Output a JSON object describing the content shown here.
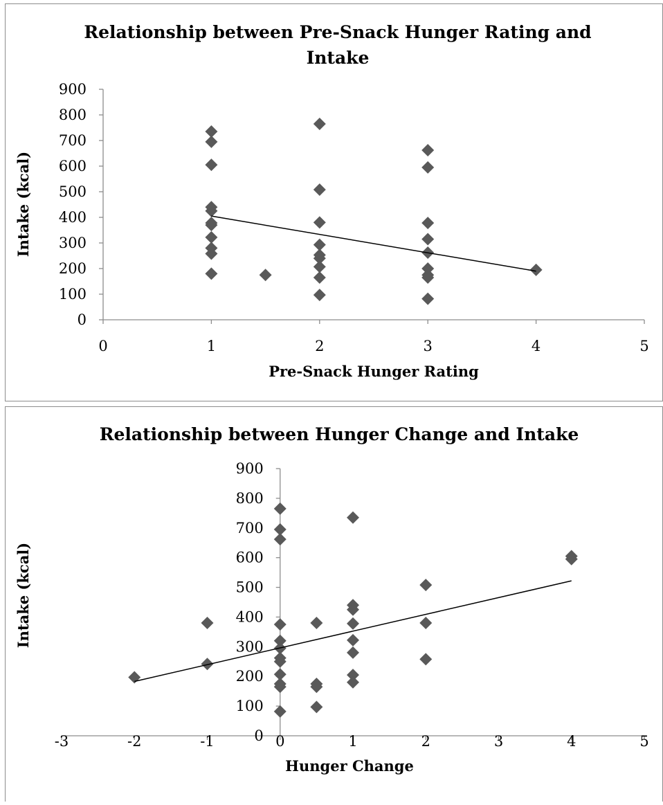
{
  "colors": {
    "marker": "#595959",
    "axis": "#8c8c8c",
    "trendline": "#000000",
    "frame": "#8c8c8c",
    "text": "#000000"
  },
  "chart_data": [
    {
      "type": "scatter",
      "title_lines": [
        "Relationship between Pre-Snack Hunger Rating and",
        "Intake"
      ],
      "xlabel": "Pre-Snack Hunger Rating",
      "ylabel": "Intake (kcal)",
      "xlim": [
        0,
        5
      ],
      "ylim": [
        0,
        900
      ],
      "xticks": [
        0,
        1,
        2,
        3,
        4,
        5
      ],
      "yticks": [
        0,
        100,
        200,
        300,
        400,
        500,
        600,
        700,
        800,
        900
      ],
      "grid": false,
      "legend": "none",
      "marker": "diamond",
      "points": [
        {
          "x": 1,
          "y": 735
        },
        {
          "x": 1,
          "y": 695
        },
        {
          "x": 1,
          "y": 605
        },
        {
          "x": 1,
          "y": 440
        },
        {
          "x": 1,
          "y": 425
        },
        {
          "x": 1,
          "y": 378
        },
        {
          "x": 1,
          "y": 370
        },
        {
          "x": 1,
          "y": 322
        },
        {
          "x": 1,
          "y": 280
        },
        {
          "x": 1,
          "y": 258
        },
        {
          "x": 1,
          "y": 180
        },
        {
          "x": 1.5,
          "y": 175
        },
        {
          "x": 2,
          "y": 765
        },
        {
          "x": 2,
          "y": 508
        },
        {
          "x": 2,
          "y": 380
        },
        {
          "x": 2,
          "y": 293
        },
        {
          "x": 2,
          "y": 253
        },
        {
          "x": 2,
          "y": 240
        },
        {
          "x": 2,
          "y": 207
        },
        {
          "x": 2,
          "y": 165
        },
        {
          "x": 2,
          "y": 97
        },
        {
          "x": 3,
          "y": 662
        },
        {
          "x": 3,
          "y": 595
        },
        {
          "x": 3,
          "y": 378
        },
        {
          "x": 3,
          "y": 315
        },
        {
          "x": 3,
          "y": 262
        },
        {
          "x": 3,
          "y": 200
        },
        {
          "x": 3,
          "y": 175
        },
        {
          "x": 3,
          "y": 165
        },
        {
          "x": 3,
          "y": 82
        },
        {
          "x": 4,
          "y": 195
        }
      ],
      "trendline": {
        "x": [
          1,
          4
        ],
        "y": [
          405,
          190
        ]
      }
    },
    {
      "type": "scatter",
      "title_lines": [
        "Relationship between Hunger Change and Intake"
      ],
      "xlabel": "Hunger Change",
      "ylabel": "Intake (kcal)",
      "xlim": [
        -3,
        5
      ],
      "ylim": [
        0,
        900
      ],
      "xticks": [
        -3,
        -2,
        -1,
        0,
        1,
        2,
        3,
        4,
        5
      ],
      "yticks": [
        0,
        100,
        200,
        300,
        400,
        500,
        600,
        700,
        800,
        900
      ],
      "grid": false,
      "legend": "none",
      "marker": "diamond",
      "points": [
        {
          "x": -2,
          "y": 197
        },
        {
          "x": -1,
          "y": 380
        },
        {
          "x": -1,
          "y": 242
        },
        {
          "x": 0,
          "y": 765
        },
        {
          "x": 0,
          "y": 695
        },
        {
          "x": 0,
          "y": 662
        },
        {
          "x": 0,
          "y": 375
        },
        {
          "x": 0,
          "y": 320
        },
        {
          "x": 0,
          "y": 295
        },
        {
          "x": 0,
          "y": 262
        },
        {
          "x": 0,
          "y": 250
        },
        {
          "x": 0,
          "y": 207
        },
        {
          "x": 0,
          "y": 175
        },
        {
          "x": 0,
          "y": 165
        },
        {
          "x": 0,
          "y": 82
        },
        {
          "x": 0.5,
          "y": 380
        },
        {
          "x": 0.5,
          "y": 175
        },
        {
          "x": 0.5,
          "y": 165
        },
        {
          "x": 0.5,
          "y": 97
        },
        {
          "x": 1,
          "y": 735
        },
        {
          "x": 1,
          "y": 440
        },
        {
          "x": 1,
          "y": 425
        },
        {
          "x": 1,
          "y": 378
        },
        {
          "x": 1,
          "y": 322
        },
        {
          "x": 1,
          "y": 280
        },
        {
          "x": 1,
          "y": 205
        },
        {
          "x": 1,
          "y": 180
        },
        {
          "x": 2,
          "y": 508
        },
        {
          "x": 2,
          "y": 380
        },
        {
          "x": 2,
          "y": 258
        },
        {
          "x": 4,
          "y": 605
        },
        {
          "x": 4,
          "y": 595
        }
      ],
      "trendline": {
        "x": [
          -2,
          4
        ],
        "y": [
          183,
          522
        ]
      }
    }
  ]
}
